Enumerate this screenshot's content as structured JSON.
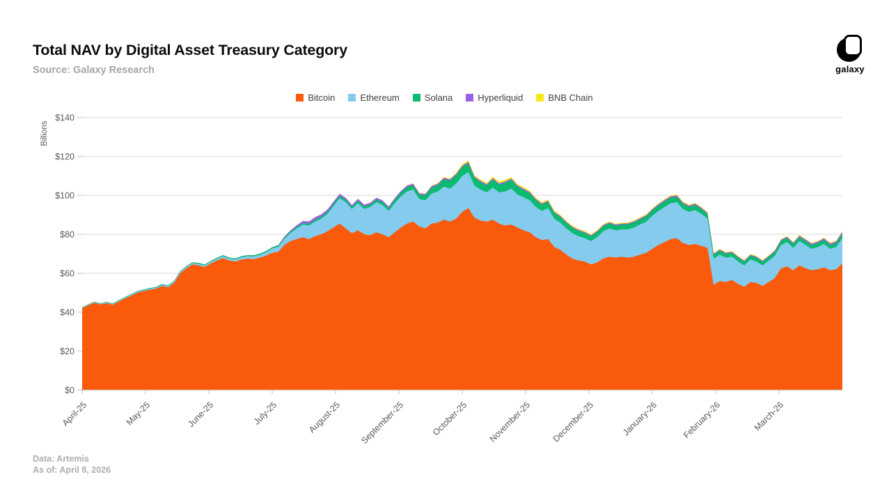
{
  "header": {
    "title": "Total NAV by Digital Asset Treasury Category",
    "source": "Source: Galaxy Research",
    "logo_text": "galaxy"
  },
  "footer": {
    "data_line": "Data: Artemis",
    "as_of_line": "As of: April 8, 2026"
  },
  "style": {
    "grid_color": "#dadada",
    "axis_color": "#bfbfbf",
    "tick_label_color": "#595959",
    "legend_text_color": "#404040",
    "title_color": "#0c0c0c",
    "muted_color": "#a6a6a6"
  },
  "chart_data": {
    "type": "area",
    "stacked": true,
    "title": "Total NAV by Digital Asset Treasury Category",
    "ylabel": "Billions",
    "ylim": [
      0,
      140
    ],
    "grid": true,
    "legend_position": "top-center",
    "y_ticks": [
      "$0",
      "$20",
      "$40",
      "$60",
      "$80",
      "$100",
      "$120",
      "$140"
    ],
    "x_unit": "days since 2025-04-01, step 3, through 2026-04-08",
    "x_ticks": [
      {
        "day": 0,
        "label": "April-25"
      },
      {
        "day": 30,
        "label": "May-25"
      },
      {
        "day": 61,
        "label": "June-25"
      },
      {
        "day": 91,
        "label": "July-25"
      },
      {
        "day": 122,
        "label": "August-25"
      },
      {
        "day": 153,
        "label": "September-25"
      },
      {
        "day": 183,
        "label": "October-25"
      },
      {
        "day": 214,
        "label": "November-25"
      },
      {
        "day": 244,
        "label": "December-25"
      },
      {
        "day": 275,
        "label": "January-26"
      },
      {
        "day": 306,
        "label": "February-26"
      },
      {
        "day": 334,
        "label": "March-26"
      }
    ],
    "series": [
      {
        "name": "Bitcoin",
        "color": "#fa5a0c",
        "values": [
          42,
          43.5,
          44.8,
          44,
          44.6,
          43.8,
          45.5,
          47,
          48.5,
          50,
          50.8,
          51.5,
          52,
          53.5,
          52.8,
          55,
          60,
          62.5,
          64.5,
          64,
          63.2,
          65,
          66.5,
          67.8,
          66.5,
          66,
          67,
          67.5,
          67.2,
          68,
          69,
          70.5,
          71,
          74.5,
          76.5,
          77.5,
          78.5,
          77.5,
          79,
          80,
          81.5,
          83.5,
          85.5,
          83,
          80.5,
          82,
          80,
          79.5,
          81,
          80,
          78.5,
          81,
          83.5,
          85.5,
          86.5,
          84,
          83,
          85.5,
          86,
          87.5,
          86.5,
          88,
          91.5,
          93.5,
          88.5,
          87,
          86.5,
          87.5,
          85.5,
          84.5,
          85,
          83.5,
          82,
          81,
          78.5,
          77,
          77.5,
          73.5,
          72,
          69.5,
          67.5,
          66.5,
          66,
          64.5,
          65.5,
          67.5,
          68.5,
          68,
          68.5,
          68,
          68.5,
          69.5,
          70.5,
          72.5,
          74.5,
          76,
          77.5,
          78,
          75.5,
          74.5,
          75,
          74,
          73,
          54,
          56,
          55.5,
          56.5,
          54.5,
          53,
          55.5,
          55,
          53.5,
          55.5,
          57.5,
          62.5,
          63.5,
          61.5,
          64,
          62.5,
          61.5,
          62,
          63,
          61.5,
          62,
          65
        ]
      },
      {
        "name": "Ethereum",
        "color": "#85cbed",
        "values": [
          0.3,
          0.3,
          0.35,
          0.35,
          0.4,
          0.4,
          0.45,
          0.45,
          0.5,
          0.5,
          0.5,
          0.55,
          0.55,
          0.6,
          0.6,
          0.65,
          0.7,
          0.7,
          0.75,
          0.8,
          0.8,
          0.9,
          0.95,
          1,
          1.05,
          1.1,
          1.2,
          1.25,
          1.4,
          1.5,
          1.8,
          2.2,
          2.6,
          3.2,
          4.2,
          5.5,
          6.5,
          7,
          7.5,
          8,
          9,
          11,
          13,
          13.5,
          12.5,
          14,
          13,
          14.5,
          15.5,
          15,
          13.5,
          15,
          16,
          16.5,
          16.5,
          14,
          14.5,
          15.5,
          16,
          17,
          17,
          18,
          18.5,
          18.5,
          16.5,
          16,
          15,
          16.5,
          16,
          17.5,
          18.5,
          17,
          17,
          16.5,
          15.5,
          15,
          16,
          14.5,
          14,
          13.5,
          13,
          12.5,
          12,
          12,
          13,
          14,
          14.5,
          14,
          14,
          14.5,
          15,
          15.5,
          16,
          17,
          17.5,
          18,
          18.5,
          18.5,
          17.5,
          17,
          17.5,
          16.5,
          15,
          13.5,
          13.5,
          12.5,
          12,
          11.5,
          11,
          11.5,
          11,
          10.5,
          11,
          11.5,
          12,
          12.5,
          11.5,
          12.5,
          12,
          11,
          11.5,
          12,
          11,
          11.5,
          13
        ]
      },
      {
        "name": "Solana",
        "color": "#0abb70",
        "values": [
          0.2,
          0.2,
          0.2,
          0.2,
          0.25,
          0.25,
          0.25,
          0.3,
          0.3,
          0.3,
          0.3,
          0.3,
          0.35,
          0.35,
          0.35,
          0.4,
          0.4,
          0.4,
          0.4,
          0.45,
          0.45,
          0.45,
          0.5,
          0.5,
          0.5,
          0.5,
          0.55,
          0.55,
          0.6,
          0.6,
          0.6,
          0.65,
          0.7,
          0.7,
          0.75,
          0.8,
          0.85,
          0.9,
          1,
          1,
          1,
          1.1,
          1.2,
          1.2,
          1.1,
          1.2,
          1.3,
          1.3,
          1.4,
          1.5,
          1.5,
          1.8,
          2,
          2.2,
          2.2,
          2.3,
          2.5,
          3,
          3.2,
          3.8,
          4,
          4.3,
          4.5,
          4.5,
          4,
          3.8,
          3.6,
          4.2,
          4,
          4.5,
          4.5,
          4,
          3.8,
          3.6,
          3.5,
          3.3,
          3.2,
          3,
          2.9,
          2.8,
          2.8,
          2.7,
          2.6,
          2.5,
          2.6,
          2.7,
          2.6,
          2.5,
          2.5,
          2.6,
          2.6,
          2.6,
          2.7,
          2.8,
          2.8,
          2.9,
          2.8,
          2.8,
          2.7,
          2.6,
          2.6,
          2.5,
          2.4,
          2,
          2.1,
          2,
          2,
          2,
          1.9,
          2,
          2,
          1.9,
          1.9,
          2,
          2.1,
          2.1,
          2,
          2.1,
          2,
          2,
          2,
          2.1,
          2,
          2.1,
          2.3
        ]
      },
      {
        "name": "Hyperliquid",
        "color": "#9a62e6",
        "values": [
          0,
          0,
          0,
          0,
          0,
          0,
          0,
          0,
          0,
          0,
          0,
          0,
          0,
          0,
          0,
          0,
          0,
          0,
          0,
          0,
          0,
          0,
          0,
          0,
          0,
          0,
          0,
          0,
          0,
          0,
          0,
          0,
          0.2,
          0.4,
          0.6,
          0.8,
          1,
          1.2,
          1.3,
          1.3,
          1.2,
          1.2,
          1.1,
          1,
          1,
          1,
          0.9,
          0.9,
          0.9,
          0.9,
          0.8,
          0.8,
          0.8,
          0.8,
          0.8,
          0.7,
          0.7,
          0.7,
          0.7,
          0.7,
          0.7,
          0.7,
          0.7,
          0.7,
          0.6,
          0.6,
          0.6,
          0.6,
          0.6,
          0.6,
          0.6,
          0.6,
          0.6,
          0.6,
          0.6,
          0.5,
          0.5,
          0.5,
          0.5,
          0.5,
          0.5,
          0.5,
          0.5,
          0.5,
          0.5,
          0.5,
          0.5,
          0.5,
          0.5,
          0.5,
          0.5,
          0.6,
          0.6,
          0.6,
          0.6,
          0.7,
          0.7,
          0.7,
          0.6,
          0.6,
          0.6,
          0.6,
          0.6,
          0.5,
          0.5,
          0.5,
          0.5,
          0.5,
          0.5,
          0.5,
          0.5,
          0.5,
          0.5,
          0.6,
          0.6,
          0.6,
          0.6,
          0.7,
          0.7,
          0.7,
          0.7,
          0.8,
          0.8,
          0.8,
          0.9
        ]
      },
      {
        "name": "BNB Chain",
        "color": "#f7e71b",
        "values": [
          0,
          0,
          0,
          0,
          0,
          0,
          0,
          0,
          0,
          0,
          0,
          0,
          0,
          0,
          0,
          0,
          0,
          0,
          0,
          0,
          0,
          0,
          0,
          0,
          0,
          0,
          0,
          0,
          0,
          0,
          0,
          0,
          0,
          0,
          0,
          0,
          0,
          0,
          0,
          0,
          0,
          0,
          0,
          0,
          0,
          0,
          0,
          0,
          0,
          0,
          0,
          0,
          0,
          0.2,
          0.2,
          0.3,
          0.3,
          0.3,
          0.4,
          0.4,
          0.5,
          0.6,
          0.8,
          0.8,
          0.7,
          0.7,
          0.7,
          0.8,
          0.9,
          1,
          0.8,
          0.8,
          0.8,
          0.7,
          0.7,
          0.7,
          0.7,
          0.7,
          0.6,
          0.6,
          0.6,
          0.6,
          0.6,
          0.5,
          0.5,
          0.5,
          0.5,
          0.5,
          0.5,
          0.5,
          0.5,
          0.5,
          0.5,
          0.5,
          0.5,
          0.5,
          0.5,
          0.5,
          0.5,
          0.5,
          0.5,
          0.4,
          0.4,
          0.4,
          0.4,
          0.4,
          0.4,
          0.4,
          0.4,
          0.4,
          0.4,
          0.4,
          0.4,
          0.4,
          0.4,
          0.4,
          0.4,
          0.4,
          0.4,
          0.4,
          0.4,
          0.4,
          0.4,
          0.4,
          0.4
        ]
      }
    ]
  }
}
